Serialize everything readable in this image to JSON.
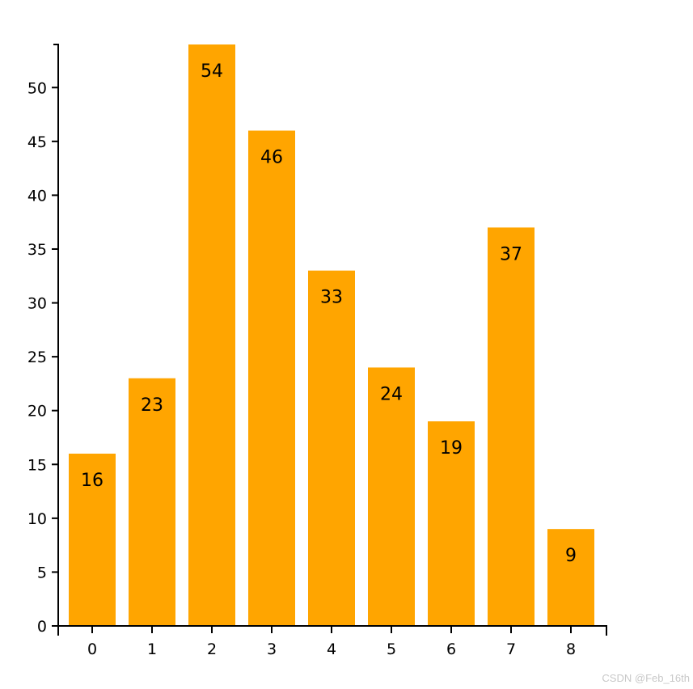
{
  "chart_data": {
    "type": "bar",
    "categories": [
      "0",
      "1",
      "2",
      "3",
      "4",
      "5",
      "6",
      "7",
      "8"
    ],
    "values": [
      16,
      23,
      54,
      46,
      33,
      24,
      19,
      37,
      9
    ],
    "ylim": [
      0,
      54
    ],
    "yticks": [
      "0",
      "5",
      "10",
      "15",
      "20",
      "25",
      "30",
      "35",
      "40",
      "45",
      "50"
    ],
    "bar_color": "#ffa500",
    "grid": false,
    "data_labels": true
  },
  "watermark": "CSDN @Feb_16th"
}
